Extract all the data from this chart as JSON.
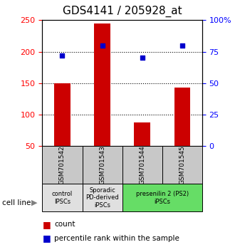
{
  "title": "GDS4141 / 205928_at",
  "samples": [
    "GSM701542",
    "GSM701543",
    "GSM701544",
    "GSM701545"
  ],
  "counts": [
    150,
    245,
    88,
    143
  ],
  "percentiles": [
    72,
    80,
    70,
    80
  ],
  "left_ylim": [
    50,
    250
  ],
  "right_ylim": [
    0,
    100
  ],
  "left_yticks": [
    50,
    100,
    150,
    200,
    250
  ],
  "right_yticks": [
    0,
    25,
    50,
    75,
    100
  ],
  "right_yticklabels": [
    "0",
    "25",
    "50",
    "75",
    "100%"
  ],
  "dotted_lines": [
    100,
    150,
    200
  ],
  "bar_color": "#cc0000",
  "dot_color": "#0000cc",
  "bar_width": 0.4,
  "groups": [
    {
      "label": "control\nIPSCs",
      "indices": [
        0
      ],
      "color": "#e0e0e0"
    },
    {
      "label": "Sporadic\nPD-derived\niPSCs",
      "indices": [
        1
      ],
      "color": "#e0e0e0"
    },
    {
      "label": "presenilin 2 (PS2)\niPSCs",
      "indices": [
        2,
        3
      ],
      "color": "#66dd66"
    }
  ],
  "cell_line_label": "cell line",
  "legend_count_label": "count",
  "legend_percentile_label": "percentile rank within the sample",
  "axis_bg_color": "#ffffff",
  "gray_box_color": "#c8c8c8",
  "title_fontsize": 11,
  "tick_fontsize": 8,
  "label_fontsize": 8
}
